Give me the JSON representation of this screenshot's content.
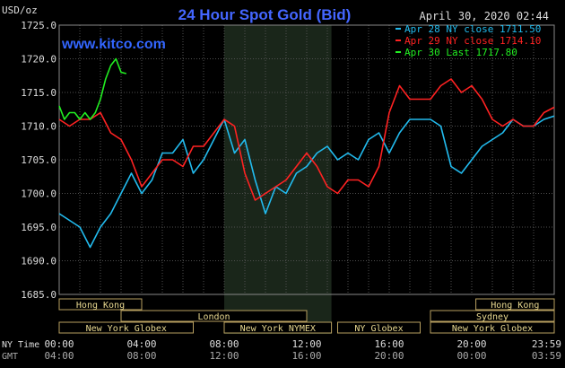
{
  "chart_data": {
    "type": "line",
    "title": "24 Hour Spot Gold (Bid)",
    "unit_label": "USD/oz",
    "website": "www.kitco.com",
    "date_label": "April 30, 2020 02:44",
    "ylim": [
      1685,
      1725
    ],
    "yticks": [
      "1725.0",
      "1720.0",
      "1715.0",
      "1710.0",
      "1705.0",
      "1700.0",
      "1695.0",
      "1690.0",
      "1685.0"
    ],
    "ny_time_label": "NY Time",
    "gmt_label": "GMT",
    "ny_ticks": [
      "00:00",
      "04:00",
      "08:00",
      "12:00",
      "16:00",
      "20:00",
      "23:59"
    ],
    "gmt_ticks": [
      "04:00",
      "08:00",
      "12:00",
      "16:00",
      "20:00",
      "00:00",
      "03:59"
    ],
    "xlim_hours": [
      0,
      24
    ],
    "grid": true,
    "legend_position": "top-right",
    "sessions": [
      {
        "name": "Hong Kong",
        "start": 0,
        "end": 4,
        "row": 0
      },
      {
        "name": "London",
        "start": 3,
        "end": 12,
        "row": 1
      },
      {
        "name": "New York Globex",
        "start": 0,
        "end": 6.5,
        "row": 2
      },
      {
        "name": "New York NYMEX",
        "start": 8,
        "end": 13.2,
        "row": 2
      },
      {
        "name": "NY Globex",
        "start": 13.5,
        "end": 17.5,
        "row": 2
      },
      {
        "name": "Hong Kong",
        "start": 20.2,
        "end": 24,
        "row": 0
      },
      {
        "name": "Sydney",
        "start": 18,
        "end": 24,
        "row": 1
      },
      {
        "name": "New York Globex",
        "start": 18,
        "end": 24,
        "row": 2
      }
    ],
    "shaded_period": [
      8,
      13.2
    ],
    "series": [
      {
        "name": "Apr 28 NY close 1711.50",
        "color": "#22bbee",
        "x": [
          0,
          0.5,
          1,
          1.5,
          2,
          2.5,
          3,
          3.5,
          4,
          4.5,
          5,
          5.5,
          6,
          6.5,
          7,
          7.5,
          8,
          8.5,
          9,
          9.5,
          10,
          10.5,
          11,
          11.5,
          12,
          12.5,
          13,
          13.5,
          14,
          14.5,
          15,
          15.5,
          16,
          16.5,
          17,
          17.5,
          18,
          18.5,
          19,
          19.5,
          20,
          20.5,
          21,
          21.5,
          22,
          22.5,
          23,
          23.5,
          24
        ],
        "values": [
          1697,
          1696,
          1695,
          1692,
          1695,
          1697,
          1700,
          1703,
          1700,
          1702,
          1706,
          1706,
          1708,
          1703,
          1705,
          1708,
          1711,
          1706,
          1708,
          1702,
          1697,
          1701,
          1700,
          1703,
          1704,
          1706,
          1707,
          1705,
          1706,
          1705,
          1708,
          1709,
          1706,
          1709,
          1711,
          1711,
          1711,
          1710,
          1704,
          1703,
          1705,
          1707,
          1708,
          1709,
          1711,
          1710,
          1710,
          1711,
          1711.5
        ]
      },
      {
        "name": "Apr 29 NY close 1714.10",
        "color": "#ff2222",
        "x": [
          0,
          0.5,
          1,
          1.5,
          2,
          2.5,
          3,
          3.5,
          4,
          4.5,
          5,
          5.5,
          6,
          6.5,
          7,
          7.5,
          8,
          8.5,
          9,
          9.5,
          10,
          10.5,
          11,
          11.5,
          12,
          12.5,
          13,
          13.5,
          14,
          14.5,
          15,
          15.5,
          16,
          16.5,
          17,
          17.5,
          18,
          18.5,
          19,
          19.5,
          20,
          20.5,
          21,
          21.5,
          22,
          22.5,
          23,
          23.5,
          24
        ],
        "values": [
          1711,
          1710,
          1711,
          1711,
          1712,
          1709,
          1708,
          1705,
          1701,
          1703,
          1705,
          1705,
          1704,
          1707,
          1707,
          1709,
          1711,
          1710,
          1703,
          1699,
          1700,
          1701,
          1702,
          1704,
          1706,
          1704,
          1701,
          1700,
          1702,
          1702,
          1701,
          1704,
          1712,
          1716,
          1714,
          1714,
          1714,
          1716,
          1717,
          1715,
          1716,
          1714,
          1711,
          1710,
          1711,
          1710,
          1710,
          1712,
          1712.8
        ]
      },
      {
        "name": "Apr 30 Last 1717.80",
        "color": "#22ee22",
        "x": [
          0,
          0.25,
          0.5,
          0.75,
          1,
          1.25,
          1.5,
          1.75,
          2,
          2.25,
          2.5,
          2.75,
          3,
          3.25
        ],
        "values": [
          1713,
          1711,
          1712,
          1712,
          1711,
          1712,
          1711,
          1712,
          1714,
          1717,
          1719,
          1720,
          1718,
          1717.8
        ]
      }
    ]
  }
}
